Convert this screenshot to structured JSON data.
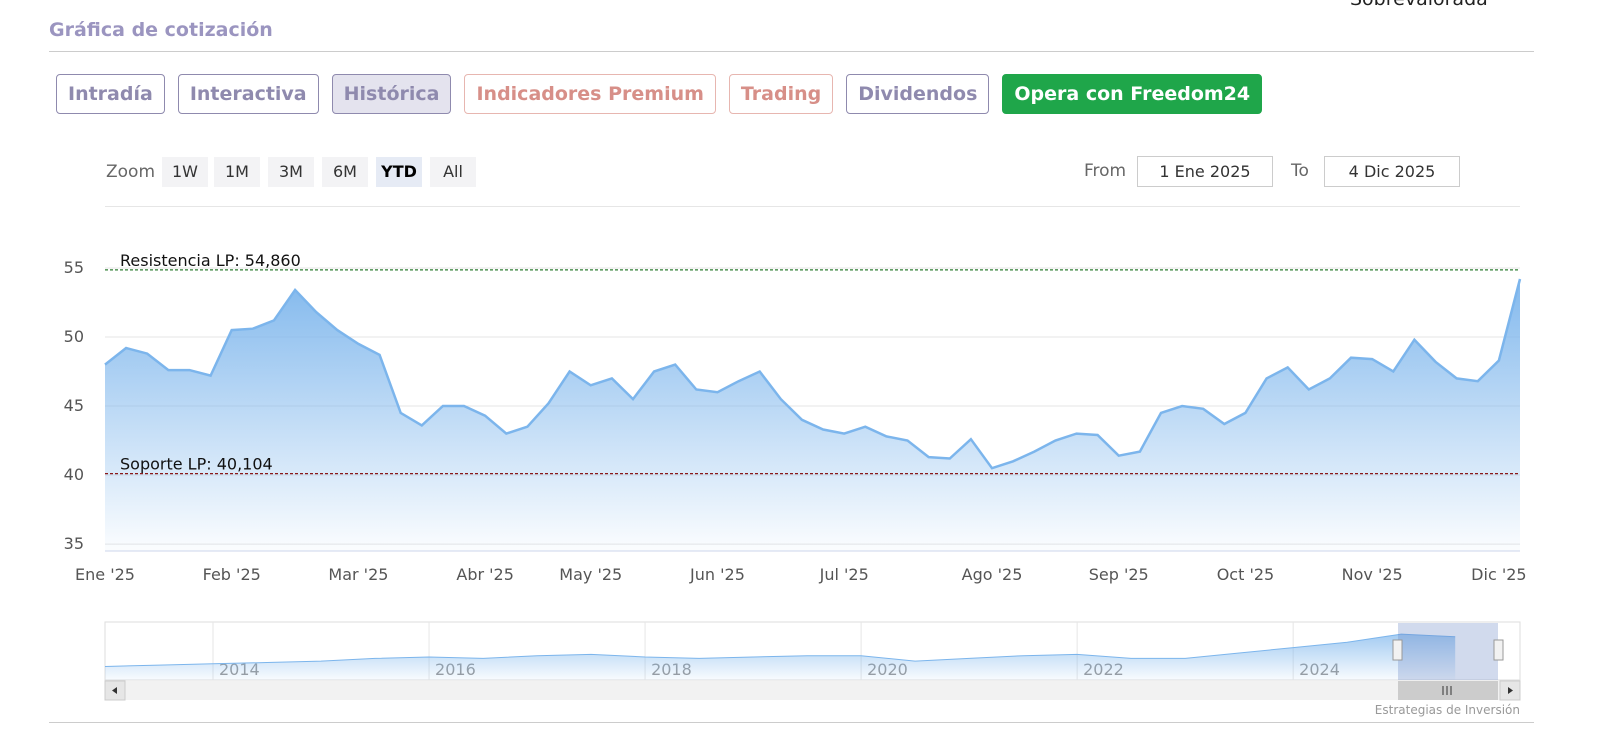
{
  "header": {
    "title": "Gráfica de cotización",
    "top_note": "Sobrevalorada"
  },
  "tabs": [
    {
      "text": "Intradía",
      "style": "default"
    },
    {
      "text": "Interactiva",
      "style": "default"
    },
    {
      "text": "Histórica",
      "style": "active"
    },
    {
      "text": "Indicadores Premium",
      "style": "premium"
    },
    {
      "text": "Trading",
      "style": "premium"
    },
    {
      "text": "Dividendos",
      "style": "default"
    },
    {
      "text": "Opera con Freedom24",
      "style": "cta"
    }
  ],
  "zoom": {
    "label": "Zoom",
    "buttons": [
      "1W",
      "1M",
      "3M",
      "6M",
      "YTD",
      "All"
    ],
    "active": 4
  },
  "range": {
    "from_label": "From",
    "from": "1 Ene 2025",
    "to_label": "To",
    "to": "4 Dic 2025"
  },
  "credit": "Estrategias de Inversión",
  "chart_data": [
    {
      "type": "area",
      "categories": [
        "Ene '25",
        null,
        null,
        null,
        null,
        null,
        "Feb '25",
        null,
        null,
        null,
        null,
        null,
        "Mar '25",
        null,
        null,
        null,
        null,
        null,
        "Abr '25",
        null,
        null,
        null,
        null,
        "May '25",
        null,
        null,
        null,
        null,
        null,
        "Jun '25",
        null,
        null,
        null,
        null,
        null,
        "Jul '25",
        null,
        null,
        null,
        null,
        null,
        null,
        "Ago '25",
        null,
        null,
        null,
        null,
        null,
        "Sep '25",
        null,
        null,
        null,
        null,
        null,
        "Oct '25",
        null,
        null,
        null,
        null,
        null,
        "Nov '25",
        null,
        null,
        null,
        null,
        null,
        "Dic '25",
        null
      ],
      "series": [
        {
          "color": "#7cb5ec",
          "values": [
            48.0,
            49.2,
            48.8,
            47.6,
            47.6,
            47.2,
            50.5,
            50.6,
            51.2,
            53.4,
            51.8,
            50.5,
            49.5,
            48.7,
            44.5,
            43.6,
            45.0,
            45.0,
            44.3,
            43.0,
            43.5,
            45.2,
            47.5,
            46.5,
            47.0,
            45.5,
            47.5,
            48.0,
            46.2,
            46.0,
            46.8,
            47.5,
            45.5,
            44.0,
            43.3,
            43.0,
            43.5,
            42.8,
            42.5,
            41.3,
            41.2,
            42.6,
            40.5,
            41.0,
            41.7,
            42.5,
            43.0,
            42.9,
            41.4,
            41.7,
            44.5,
            45.0,
            44.8,
            43.7,
            44.5,
            47.0,
            47.8,
            46.2,
            47.0,
            48.5,
            48.4,
            47.5,
            49.8,
            48.2,
            47.0,
            46.8,
            48.3,
            54.2
          ]
        }
      ],
      "ylim": [
        34.5,
        56.3
      ],
      "yticks": [
        35,
        40,
        45,
        50,
        55
      ],
      "grid": true,
      "reference_lines": [
        {
          "label": "Resistencia LP: 54,860",
          "value": 54.86,
          "color": "#2e7d32"
        },
        {
          "label": "Soporte LP: 40,104",
          "value": 40.104,
          "color": "#8b1a1a"
        }
      ]
    },
    {
      "type": "area",
      "categories": [
        null,
        null,
        "2014",
        null,
        null,
        null,
        "2016",
        null,
        null,
        null,
        "2018",
        null,
        null,
        null,
        "2020",
        null,
        null,
        null,
        "2022",
        null,
        null,
        null,
        "2024",
        null,
        null,
        null
      ],
      "series": [
        {
          "color": "#7cb5ec",
          "values": [
            35,
            35.5,
            36,
            36.5,
            37,
            38,
            38.5,
            38,
            39,
            39.5,
            38.5,
            38,
            38.5,
            39,
            39,
            37,
            38,
            39,
            39.5,
            38,
            38,
            40,
            42,
            44,
            47,
            46
          ]
        }
      ],
      "ylim": [
        30,
        50
      ]
    }
  ]
}
